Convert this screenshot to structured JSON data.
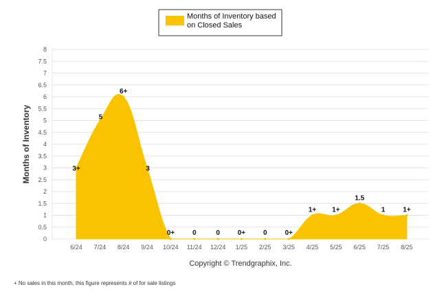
{
  "chart_data": {
    "type": "area",
    "legend_label_lines": [
      "Months of Inventory based",
      "on Closed Sales"
    ],
    "legend_placement": "top-center",
    "ylabel": "Months of Inventory",
    "xlabel": "",
    "ylim": [
      0,
      8
    ],
    "ytick_step": 0.5,
    "grid": true,
    "categories": [
      "6/24",
      "7/24",
      "8/24",
      "9/24",
      "10/24",
      "11/24",
      "12/24",
      "1/25",
      "2/25",
      "3/25",
      "4/25",
      "5/25",
      "6/25",
      "7/25",
      "8/25"
    ],
    "series": [
      {
        "name": "Months of Inventory based on Closed Sales",
        "values": [
          3,
          5,
          6,
          3,
          0,
          0,
          0,
          0,
          0,
          0,
          1,
          1,
          1.5,
          1,
          1
        ],
        "labels": [
          "3+",
          "5",
          "6+",
          "3",
          "0+",
          "0",
          "0",
          "0+",
          "0",
          "0+",
          "1+",
          "1+",
          "1.5",
          "1",
          "1+"
        ]
      }
    ]
  },
  "copyright": "Copyright © Trendgraphix, Inc.",
  "footnote": "+  No sales in this month, this figure represents # of for sale listings",
  "colors": {
    "area": "#F9C300",
    "grid": "#E4E4E4",
    "legend_border": "#333333"
  }
}
